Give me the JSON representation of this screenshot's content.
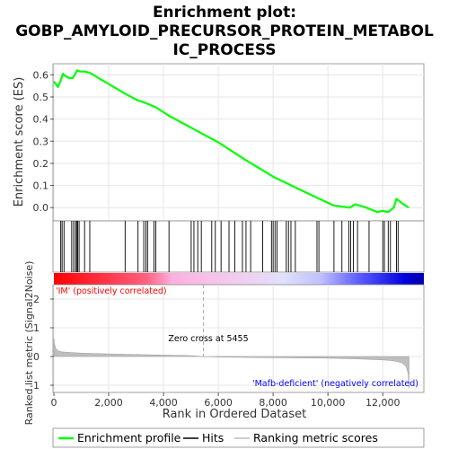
{
  "title": {
    "line1": "Enrichment plot:",
    "line2": "GOBP_AMYLOID_PRECURSOR_PROTEIN_METABOL",
    "line3": "IC_PROCESS"
  },
  "colors": {
    "enrichment_line": "#00ff00",
    "hit_line": "#000000",
    "ranking_fill": "#bebebe",
    "positive_label": "#ff0000",
    "negative_label": "#0000ff",
    "heatmap_pos_strong": "#ff0000",
    "heatmap_pos_light": "#ffb0e0",
    "heatmap_neg_light": "#d0d0ff",
    "heatmap_neg_strong": "#0000ff"
  },
  "chart_data": [
    {
      "type": "line",
      "name": "enrichment-profile",
      "ylabel": "Enrichment score (ES)",
      "xlim": [
        0,
        13500
      ],
      "ylim": [
        -0.06,
        0.65
      ],
      "yticks": [
        0.0,
        0.1,
        0.2,
        0.3,
        0.4,
        0.5,
        0.6
      ],
      "ytick_labels": [
        "0.0",
        "0.1",
        "0.2",
        "0.3",
        "0.4",
        "0.5",
        "0.6"
      ],
      "grid": true,
      "x": [
        0,
        150,
        250,
        330,
        420,
        560,
        680,
        760,
        850,
        960,
        1100,
        1300,
        2600,
        3050,
        3300,
        3700,
        4200,
        5100,
        6000,
        7000,
        8000,
        8500,
        9000,
        9600,
        10200,
        10500,
        10800,
        11000,
        11400,
        11800,
        12000,
        12200,
        12400,
        12500,
        12700,
        12950
      ],
      "y": [
        0.57,
        0.545,
        0.575,
        0.605,
        0.595,
        0.585,
        0.585,
        0.6,
        0.62,
        0.615,
        0.615,
        0.61,
        0.515,
        0.485,
        0.475,
        0.455,
        0.415,
        0.355,
        0.295,
        0.215,
        0.14,
        0.11,
        0.08,
        0.045,
        0.01,
        0.005,
        0.0,
        0.015,
        0.0,
        -0.02,
        -0.015,
        -0.02,
        0.0,
        0.04,
        0.02,
        0.0
      ]
    },
    {
      "type": "scatter",
      "name": "hits",
      "x": [
        250,
        300,
        370,
        650,
        720,
        790,
        830,
        870,
        920,
        1120,
        1310,
        2600,
        3070,
        3280,
        3360,
        3420,
        3650,
        3720,
        4200,
        5010,
        5110,
        5250,
        5380,
        5760,
        5890,
        6100,
        6390,
        6600,
        6880,
        7010,
        7180,
        7620,
        7940,
        8000,
        8070,
        8140,
        8480,
        8560,
        8650,
        8810,
        9600,
        9670,
        10220,
        10510,
        10760,
        10830,
        10930,
        11080,
        11500,
        12000,
        12060,
        12200,
        12280,
        12500,
        12560
      ]
    },
    {
      "type": "area",
      "name": "ranked-list-metric",
      "xlabel": "Rank in Ordered Dataset",
      "ylabel": "Ranked list metric (Signal2Noise)",
      "xlim": [
        0,
        13500
      ],
      "ylim": [
        -1.25,
        2.5
      ],
      "xticks": [
        0,
        2000,
        4000,
        6000,
        8000,
        10000,
        12000
      ],
      "xtick_labels": [
        "0",
        "2,000",
        "4,000",
        "6,000",
        "8,000",
        "10,000",
        "12,000"
      ],
      "yticks": [
        -1,
        0,
        1,
        2
      ],
      "ytick_labels": [
        "-1",
        "0",
        "1",
        "2"
      ],
      "grid": true,
      "x": [
        0,
        20,
        60,
        150,
        300,
        600,
        1000,
        2000,
        3000,
        4000,
        5000,
        5455,
        6000,
        7000,
        8000,
        9000,
        10000,
        11000,
        11500,
        12000,
        12300,
        12500,
        12700,
        12850,
        12930,
        12960
      ],
      "y": [
        0.62,
        0.45,
        0.3,
        0.2,
        0.16,
        0.14,
        0.12,
        0.09,
        0.07,
        0.05,
        0.03,
        0.0,
        -0.02,
        -0.03,
        -0.04,
        -0.05,
        -0.06,
        -0.08,
        -0.1,
        -0.12,
        -0.14,
        -0.17,
        -0.22,
        -0.35,
        -0.6,
        -1.1
      ]
    }
  ],
  "annotations": {
    "positive_label": "'IM' (positively correlated)",
    "negative_label": "'Mafb-deficient' (negatively correlated)",
    "zero_cross_label": "Zero cross at 5455",
    "zero_cross_rank": 5455
  },
  "legend": {
    "enrichment_profile": "Enrichment profile",
    "hits": "Hits",
    "ranking_metric": "Ranking metric scores"
  }
}
